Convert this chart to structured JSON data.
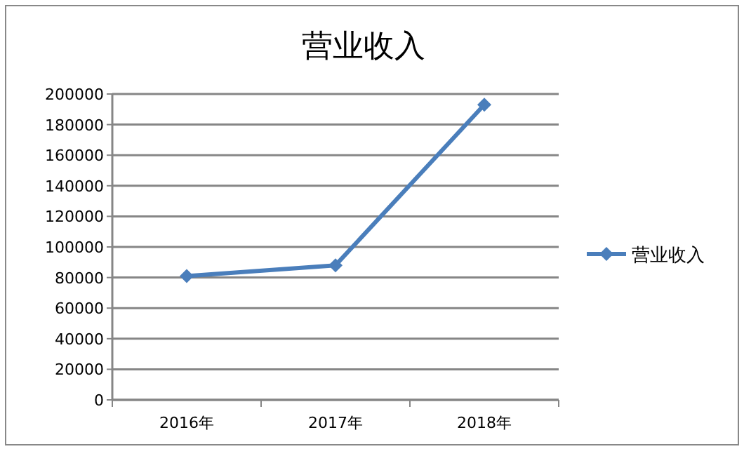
{
  "chart_data": {
    "type": "line",
    "title": "营业收入",
    "categories": [
      "2016年",
      "2017年",
      "2018年"
    ],
    "series": [
      {
        "name": "营业收入",
        "color": "#4a7ebb",
        "values": [
          81000,
          88000,
          193000
        ]
      }
    ],
    "ylim": [
      0,
      200000
    ],
    "yticks": [
      0,
      20000,
      40000,
      60000,
      80000,
      100000,
      120000,
      140000,
      160000,
      180000,
      200000
    ],
    "grid": "y",
    "legend": "right",
    "marker": "diamond",
    "line_style": "solid"
  }
}
